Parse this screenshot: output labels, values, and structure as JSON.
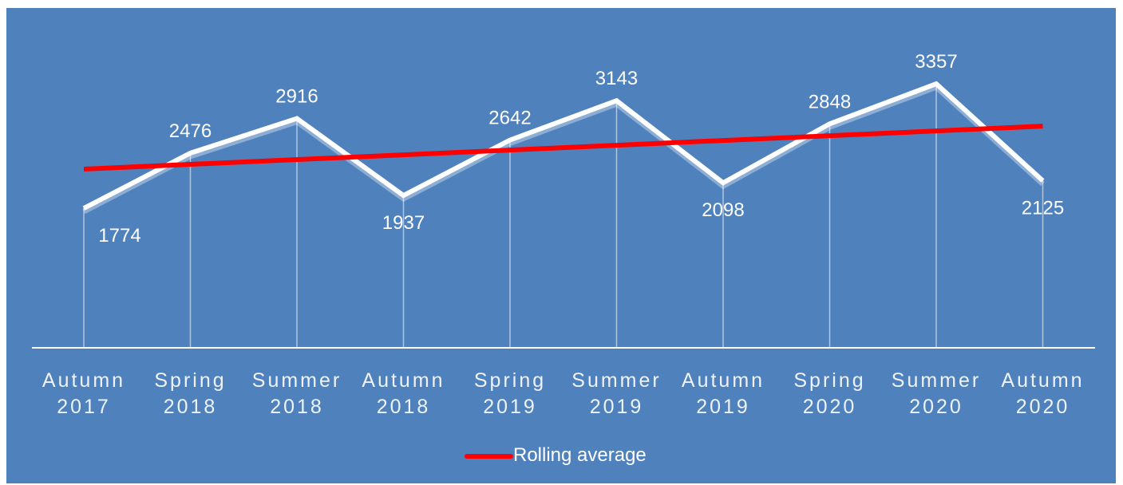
{
  "chart_data": {
    "type": "line",
    "categories": [
      "Autumn 2017",
      "Spring 2018",
      "Summer 2018",
      "Autumn 2018",
      "Spring 2019",
      "Summer 2019",
      "Autumn 2019",
      "Spring 2020",
      "Summer 2020",
      "Autumn 2020"
    ],
    "series": [
      {
        "color": "#ffffff",
        "values": [
          1774,
          2476,
          2916,
          1937,
          2642,
          3143,
          2098,
          2848,
          3357,
          2125
        ],
        "data_labels": true
      },
      {
        "name": "Rolling average",
        "color": "#ff0000",
        "values": [
          2272,
          2333,
          2394,
          2454,
          2515,
          2576,
          2637,
          2697,
          2758,
          2819
        ],
        "data_labels": false
      }
    ],
    "ylim": [
      0,
      3500
    ],
    "drop_lines": true,
    "legend": "bottom"
  }
}
